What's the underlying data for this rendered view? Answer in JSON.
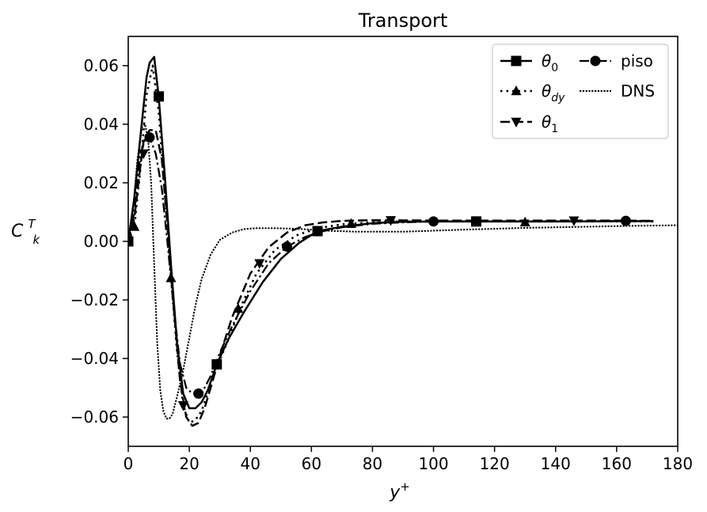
{
  "chart_data": {
    "type": "line",
    "title": "Transport",
    "xlabel": "y^+",
    "ylabel": "C_k^T",
    "xlim": [
      0,
      180
    ],
    "ylim": [
      -0.07,
      0.07
    ],
    "x_ticks": [
      0,
      20,
      40,
      60,
      80,
      100,
      120,
      140,
      160,
      180
    ],
    "y_ticks": [
      -0.06,
      -0.04,
      -0.02,
      0.0,
      0.02,
      0.04,
      0.06
    ],
    "x_tick_labels": [
      "0",
      "20",
      "40",
      "60",
      "80",
      "100",
      "120",
      "140",
      "160",
      "180"
    ],
    "y_tick_labels": [
      "−0.06",
      "−0.04",
      "−0.02",
      "0.00",
      "0.02",
      "0.04",
      "0.06"
    ],
    "grid": false,
    "legend_position": "top-right",
    "legend_columns": 2,
    "series": [
      {
        "name": "θ",
        "subscript": "0",
        "marker": "square",
        "line_style": "solid",
        "x": [
          0,
          2,
          4,
          6,
          7,
          8.5,
          10,
          12,
          14,
          16,
          18,
          20,
          22,
          24,
          26,
          29,
          33,
          38,
          44,
          50,
          56,
          62,
          70,
          80,
          90,
          100,
          114,
          130,
          146,
          162,
          172
        ],
        "y": [
          0.0,
          0.015,
          0.036,
          0.056,
          0.061,
          0.063,
          0.049,
          0.022,
          -0.008,
          -0.035,
          -0.052,
          -0.057,
          -0.057,
          -0.055,
          -0.051,
          -0.042,
          -0.033,
          -0.024,
          -0.014,
          -0.006,
          -0.0005,
          0.0035,
          0.005,
          0.0062,
          0.0067,
          0.0068,
          0.0068,
          0.0068,
          0.0068,
          0.0069,
          0.0069
        ],
        "marker_x": [
          0,
          10,
          29,
          62,
          114
        ],
        "marker_y": [
          0.0,
          0.0495,
          -0.042,
          0.0035,
          0.0068
        ]
      },
      {
        "name": "θ",
        "subscript": "dy",
        "marker": "triangle-up",
        "line_style": "dotted",
        "x": [
          0,
          2,
          4,
          6,
          8,
          10,
          12,
          14,
          16,
          18,
          20,
          22,
          24,
          26,
          29,
          33,
          37,
          42,
          48,
          55,
          62,
          70,
          80,
          90,
          100,
          115,
          130,
          146,
          162,
          172
        ],
        "y": [
          0.0,
          0.005,
          0.025,
          0.05,
          0.06,
          0.044,
          0.016,
          -0.012,
          -0.038,
          -0.056,
          -0.062,
          -0.061,
          -0.058,
          -0.052,
          -0.043,
          -0.033,
          -0.022,
          -0.011,
          -0.003,
          0.002,
          0.0045,
          0.0058,
          0.0065,
          0.0068,
          0.0068,
          0.0068,
          0.0068,
          0.0068,
          0.0068,
          0.0068
        ],
        "marker_x": [
          2,
          14,
          36,
          73,
          130
        ],
        "marker_y": [
          0.005,
          -0.0125,
          -0.023,
          0.006,
          0.0065
        ]
      },
      {
        "name": "θ",
        "subscript": "1",
        "marker": "triangle-down",
        "line_style": "dashed",
        "x": [
          0,
          2,
          4,
          5,
          7,
          9,
          11,
          13,
          15,
          17,
          19,
          21,
          23,
          25,
          27,
          30,
          34,
          40,
          46,
          52,
          58,
          64,
          70,
          78,
          86,
          100,
          120,
          146,
          162,
          172
        ],
        "y": [
          0.0,
          0.008,
          0.026,
          0.034,
          0.038,
          0.038,
          0.028,
          0.004,
          -0.024,
          -0.048,
          -0.06,
          -0.063,
          -0.062,
          -0.057,
          -0.05,
          -0.039,
          -0.026,
          -0.011,
          -0.002,
          0.003,
          0.0055,
          0.0065,
          0.007,
          0.0072,
          0.0072,
          0.0071,
          0.0071,
          0.0071,
          0.0071,
          0.007
        ],
        "marker_x": [
          5,
          18,
          43,
          86,
          146
        ],
        "marker_y": [
          0.03,
          -0.056,
          -0.0075,
          0.0072,
          0.0071
        ]
      },
      {
        "name": "piso",
        "subscript": "",
        "marker": "circle",
        "line_style": "dashdot",
        "x": [
          0,
          2,
          4,
          6,
          7,
          9,
          11,
          13,
          15,
          17,
          19,
          21,
          23,
          25,
          27,
          30,
          34,
          40,
          46,
          52,
          58,
          64,
          70,
          80,
          90,
          100,
          114,
          130,
          146,
          163,
          172
        ],
        "y": [
          0.0,
          0.01,
          0.03,
          0.036,
          0.0355,
          0.03,
          0.018,
          -0.002,
          -0.024,
          -0.042,
          -0.05,
          -0.052,
          -0.052,
          -0.05,
          -0.046,
          -0.038,
          -0.029,
          -0.017,
          -0.0075,
          -0.0018,
          0.0015,
          0.0035,
          0.0048,
          0.006,
          0.0065,
          0.0068,
          0.0069,
          0.0069,
          0.0069,
          0.007,
          0.007
        ],
        "marker_x": [
          7,
          23,
          52,
          100,
          163
        ],
        "marker_y": [
          0.0355,
          -0.052,
          -0.0018,
          0.0068,
          0.007
        ]
      },
      {
        "name": "DNS",
        "subscript": "",
        "marker": "none",
        "line_style": "dense-dotted",
        "x": [
          0,
          1.5,
          3,
          4.5,
          5.5,
          6.5,
          7.5,
          8.5,
          9.5,
          10.5,
          11.5,
          12.5,
          13.5,
          14.5,
          16,
          18,
          20,
          22,
          24,
          27,
          30,
          34,
          38,
          42,
          48,
          55,
          60,
          66,
          75,
          90,
          110,
          130,
          150,
          165,
          180
        ],
        "y": [
          0.0,
          0.01,
          0.028,
          0.039,
          0.04,
          0.035,
          0.02,
          -0.008,
          -0.035,
          -0.051,
          -0.058,
          -0.0605,
          -0.0605,
          -0.059,
          -0.053,
          -0.044,
          -0.033,
          -0.022,
          -0.013,
          -0.0045,
          0.0005,
          0.003,
          0.0042,
          0.0045,
          0.0045,
          0.0043,
          0.004,
          0.0036,
          0.0033,
          0.0033,
          0.004,
          0.0046,
          0.005,
          0.0053,
          0.0055
        ],
        "marker_x": [],
        "marker_y": []
      }
    ]
  }
}
